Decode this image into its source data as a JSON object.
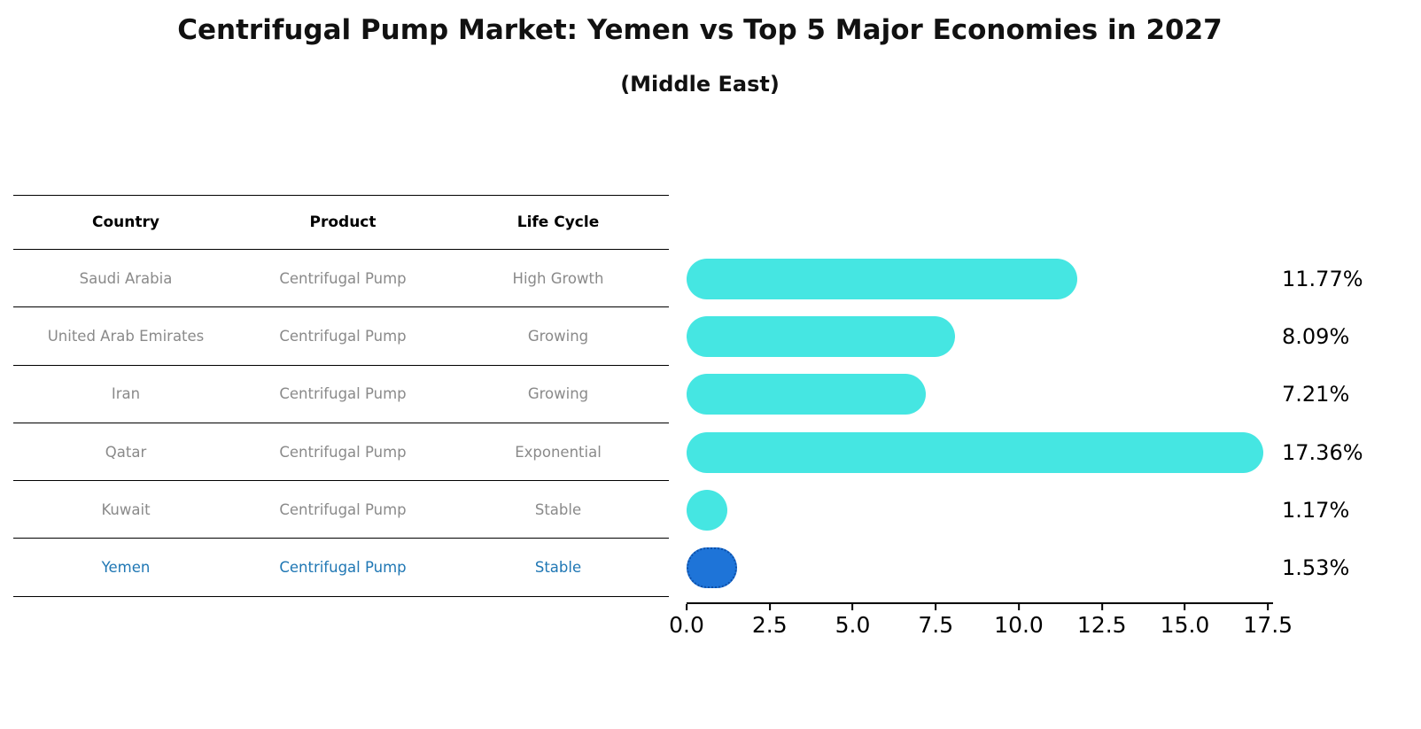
{
  "title": "Centrifugal Pump Market: Yemen vs Top 5 Major Economies in 2027",
  "subtitle": "(Middle East)",
  "table": {
    "headers": {
      "country": "Country",
      "product": "Product",
      "life_cycle": "Life Cycle"
    },
    "rows": [
      {
        "country": "Saudi Arabia",
        "product": "Centrifugal Pump",
        "life_cycle": "High Growth"
      },
      {
        "country": "United Arab Emirates",
        "product": "Centrifugal Pump",
        "life_cycle": "Growing"
      },
      {
        "country": "Iran",
        "product": "Centrifugal Pump",
        "life_cycle": "Growing"
      },
      {
        "country": "Qatar",
        "product": "Centrifugal Pump",
        "life_cycle": "Exponential"
      },
      {
        "country": "Kuwait",
        "product": "Centrifugal Pump",
        "life_cycle": "Stable"
      },
      {
        "country": "Yemen",
        "product": "Centrifugal Pump",
        "life_cycle": "Stable"
      }
    ]
  },
  "chart_data": {
    "type": "bar",
    "orientation": "horizontal",
    "title": "Centrifugal Pump Market: Yemen vs Top 5 Major Economies in 2027 (Middle East)",
    "categories": [
      "Saudi Arabia",
      "United Arab Emirates",
      "Iran",
      "Qatar",
      "Kuwait",
      "Yemen"
    ],
    "values": [
      11.77,
      8.09,
      7.21,
      17.36,
      1.17,
      1.53
    ],
    "value_labels": [
      "11.77%",
      "8.09%",
      "7.21%",
      "17.36%",
      "1.17%",
      "1.53%"
    ],
    "unit": "%",
    "highlight_index": 5,
    "xlim": [
      0,
      18.1
    ],
    "xtick_values": [
      0,
      2.5,
      5,
      7.5,
      10,
      12.5,
      15,
      17.5
    ],
    "xtick_labels": [
      "0.0",
      "2.5",
      "5.0",
      "7.5",
      "10.0",
      "12.5",
      "15.0",
      "17.5"
    ],
    "grid": false,
    "legend": false
  },
  "colors": {
    "bar": "#45E6E2",
    "highlight_bar": "#1E74D8",
    "highlight_border": "#0D4FA8",
    "highlight_text": "#1f77b4",
    "table_text": "#8a8a8a"
  }
}
